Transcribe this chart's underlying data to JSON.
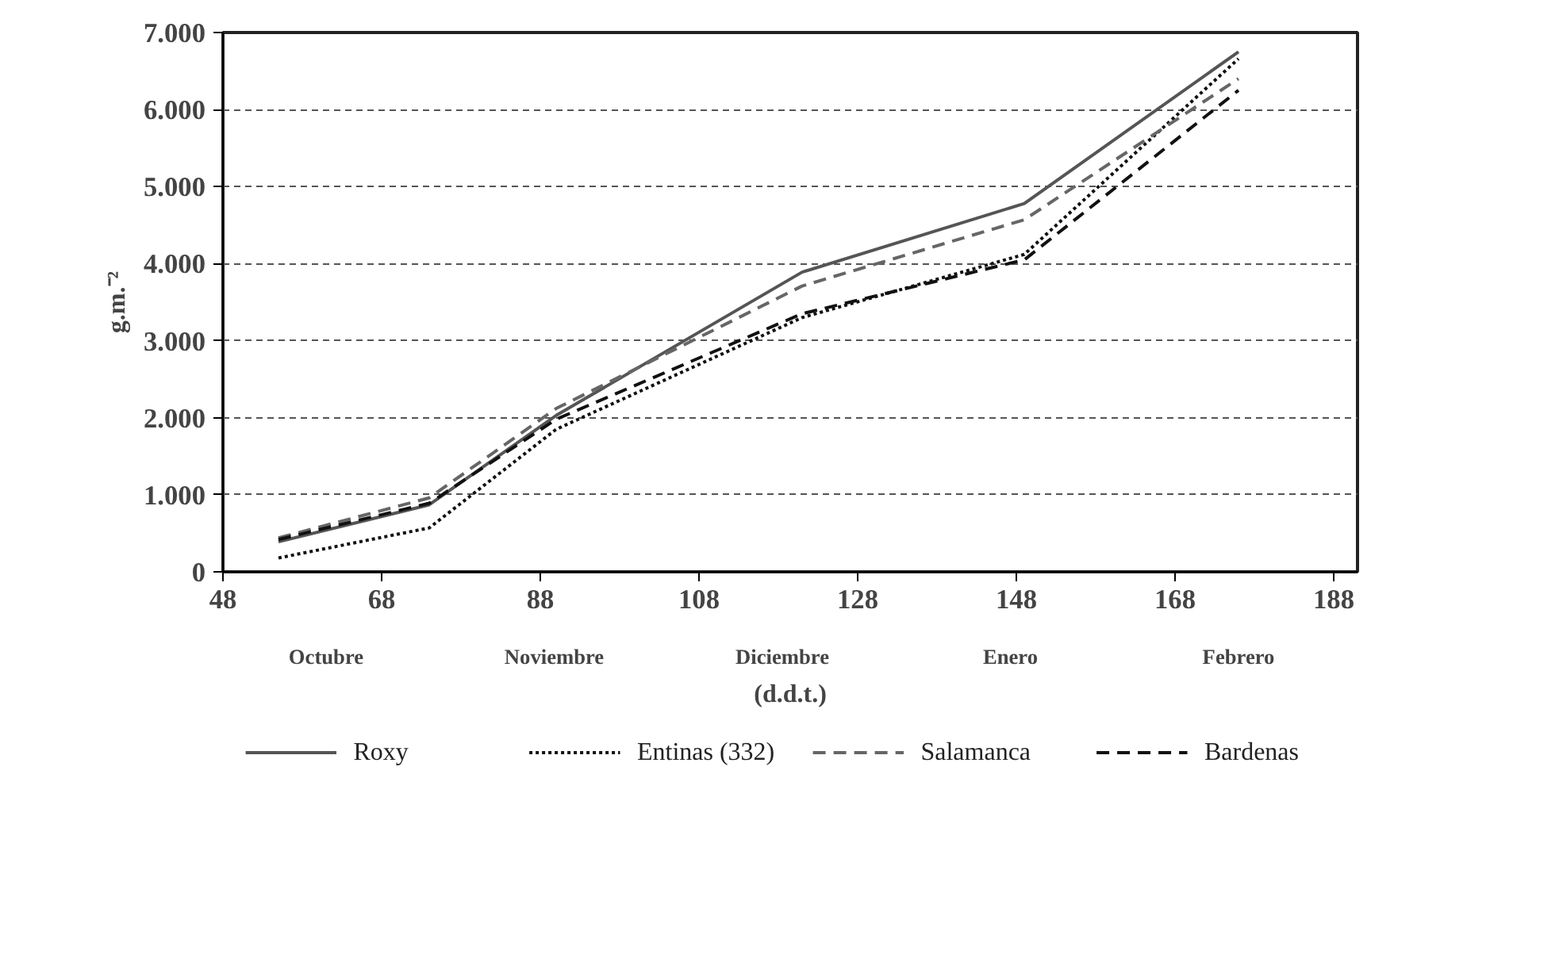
{
  "chart_data": {
    "type": "line",
    "xlabel": "(d.d.t.)",
    "ylabel": "g.m.⁻²",
    "xlim": [
      48,
      191
    ],
    "xticks": [
      48,
      68,
      88,
      108,
      128,
      148,
      168,
      188
    ],
    "ylim": [
      0,
      7000
    ],
    "yticks": [
      0,
      {
        "value": 1000,
        "label": "1.000"
      },
      {
        "value": 2000,
        "label": "2.000"
      },
      {
        "value": 3000,
        "label": "3.000"
      },
      {
        "value": 4000,
        "label": "4.000"
      },
      {
        "value": 5000,
        "label": "5.000"
      },
      {
        "value": 6000,
        "label": "6.000"
      },
      {
        "value": 7000,
        "label": "7.000"
      }
    ],
    "x": [
      55,
      74,
      90,
      121,
      149,
      176
    ],
    "series": [
      {
        "name": "Roxy",
        "color": "#555555",
        "line_style": "solid",
        "values": [
          390,
          870,
          2030,
          3890,
          4780,
          6750
        ]
      },
      {
        "name": "Entinas (332)",
        "color": "#111111",
        "line_style": "dotted",
        "values": [
          180,
          570,
          1850,
          3300,
          4120,
          6660
        ]
      },
      {
        "name": "Salamanca",
        "color": "#666666",
        "line_style": "dashed",
        "values": [
          440,
          960,
          2120,
          3710,
          4570,
          6400
        ]
      },
      {
        "name": "Bardenas",
        "color": "#111111",
        "line_style": "dashed",
        "values": [
          420,
          890,
          1980,
          3350,
          4050,
          6250
        ]
      }
    ],
    "annotations": [
      "Octubre",
      "Noviembre",
      "Diciembre",
      "Enero",
      "Febrero"
    ],
    "grid": "y",
    "legend": "bottom",
    "marker": "none"
  }
}
